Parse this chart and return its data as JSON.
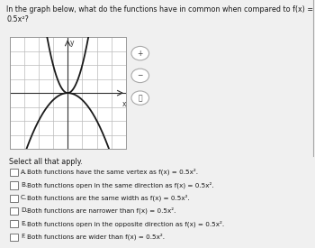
{
  "title": "In the graph below, what do the functions have in common when compared to f(x) = 0.5x²?",
  "graph_xlim": [
    -4,
    4
  ],
  "graph_ylim": [
    -4,
    4
  ],
  "curve1_a": 2.0,
  "curve2_a": -0.5,
  "options": [
    [
      "A.",
      "Both functions have the same vertex as f(x) = 0.5x²."
    ],
    [
      "B.",
      "Both functions open in the same direction as f(x) = 0.5x²."
    ],
    [
      "C.",
      "Both functions are the same width as f(x) = 0.5x²."
    ],
    [
      "D.",
      "Both functions are narrower than f(x) = 0.5x²."
    ],
    [
      "E.",
      "Both functions open in the opposite direction as f(x) = 0.5x²."
    ],
    [
      "F.",
      "Both functions are wider than f(x) = 0.5x²."
    ]
  ],
  "select_text": "Select all that apply.",
  "page_bg": "#f0f0f0",
  "graph_bg": "#ffffff",
  "curve_color": "#1a1a1a",
  "grid_color": "#bbbbbb",
  "axis_color": "#333333",
  "text_color": "#1a1a1a",
  "checkbox_color": "#777777",
  "divider_color": "#cccccc",
  "icon_bg": "#ffffff",
  "icon_border": "#aaaaaa",
  "title_fontsize": 5.8,
  "option_fontsize": 5.2,
  "select_fontsize": 5.8
}
